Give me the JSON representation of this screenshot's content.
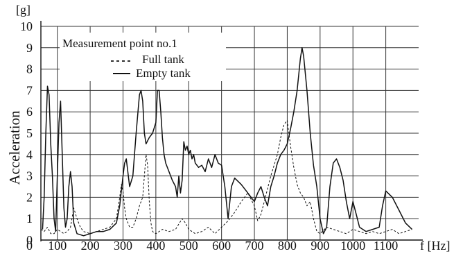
{
  "chart_data": {
    "type": "line",
    "ylabel": "Acceleration",
    "y_unit": "[g]",
    "x_unit": "f [Hz]",
    "xlim": [
      50,
      1200
    ],
    "ylim": [
      0,
      10
    ],
    "grid": true,
    "legend_placement": "top-left",
    "x_ticks": [
      100,
      200,
      300,
      400,
      500,
      600,
      700,
      800,
      900,
      1000,
      1100
    ],
    "y_ticks": [
      0,
      1,
      2,
      3,
      4,
      5,
      6,
      7,
      8,
      9,
      10
    ],
    "legend": {
      "title": "Measurement point no.1",
      "items": [
        "Full tank",
        "Empty tank"
      ]
    },
    "series": [
      {
        "name": "Full tank",
        "style": "dashed",
        "x": [
          50,
          60,
          70,
          80,
          90,
          100,
          110,
          120,
          130,
          140,
          150,
          160,
          170,
          180,
          200,
          220,
          240,
          260,
          280,
          290,
          295,
          300,
          305,
          310,
          320,
          330,
          340,
          350,
          360,
          365,
          370,
          375,
          380,
          385,
          390,
          400,
          420,
          440,
          460,
          480,
          490,
          500,
          520,
          540,
          560,
          580,
          600,
          620,
          640,
          660,
          680,
          700,
          710,
          720,
          730,
          740,
          750,
          760,
          770,
          780,
          790,
          800,
          810,
          820,
          830,
          840,
          850,
          860,
          870,
          880,
          890,
          900,
          920,
          940,
          960,
          980,
          1000,
          1020,
          1040,
          1060,
          1080,
          1100,
          1120,
          1140,
          1160,
          1180
        ],
        "y": [
          0.5,
          0.4,
          0.6,
          0.3,
          0.3,
          0.5,
          0.4,
          0.3,
          0.4,
          0.6,
          1.5,
          1.0,
          0.6,
          0.4,
          0.3,
          0.4,
          0.5,
          0.6,
          1.0,
          2.0,
          2.6,
          2.3,
          1.5,
          1.0,
          0.6,
          0.6,
          1.0,
          1.6,
          2.0,
          3.0,
          4.0,
          3.5,
          1.8,
          0.8,
          0.4,
          0.3,
          0.5,
          0.4,
          0.5,
          1.0,
          0.8,
          0.5,
          0.3,
          0.4,
          0.6,
          0.3,
          0.6,
          0.9,
          1.3,
          1.8,
          2.2,
          1.6,
          0.9,
          1.2,
          1.8,
          2.4,
          3.0,
          3.5,
          4.0,
          4.8,
          5.4,
          5.6,
          4.4,
          3.4,
          2.6,
          2.2,
          2.0,
          1.6,
          1.8,
          1.0,
          0.4,
          0.3,
          0.6,
          0.5,
          0.4,
          0.3,
          0.5,
          0.4,
          0.3,
          0.4,
          0.3,
          0.4,
          0.5,
          0.3,
          0.4,
          0.5
        ]
      },
      {
        "name": "Empty tank",
        "style": "solid",
        "x": [
          55,
          60,
          65,
          70,
          75,
          80,
          85,
          90,
          95,
          100,
          105,
          110,
          115,
          120,
          125,
          130,
          135,
          140,
          145,
          150,
          160,
          180,
          200,
          220,
          240,
          260,
          280,
          290,
          300,
          305,
          310,
          320,
          330,
          340,
          350,
          355,
          360,
          365,
          370,
          380,
          390,
          400,
          405,
          410,
          415,
          420,
          425,
          430,
          440,
          450,
          460,
          465,
          470,
          475,
          480,
          485,
          490,
          495,
          500,
          505,
          510,
          515,
          520,
          530,
          540,
          550,
          560,
          570,
          580,
          590,
          600,
          610,
          620,
          630,
          640,
          660,
          680,
          700,
          710,
          720,
          730,
          740,
          750,
          760,
          770,
          780,
          790,
          800,
          810,
          820,
          830,
          840,
          845,
          850,
          860,
          870,
          880,
          890,
          900,
          910,
          920,
          930,
          940,
          950,
          960,
          970,
          980,
          990,
          1000,
          1010,
          1020,
          1040,
          1060,
          1080,
          1090,
          1100,
          1120,
          1140,
          1160,
          1180
        ],
        "y": [
          0.5,
          2.0,
          5.0,
          7.2,
          6.8,
          4.5,
          3.0,
          1.0,
          0.4,
          3.0,
          5.5,
          6.5,
          4.0,
          1.5,
          0.6,
          1.0,
          2.5,
          3.2,
          2.5,
          0.8,
          0.3,
          0.2,
          0.3,
          0.4,
          0.4,
          0.5,
          0.8,
          1.6,
          3.0,
          3.6,
          3.8,
          2.5,
          3.0,
          5.0,
          6.8,
          7.0,
          6.5,
          5.0,
          4.5,
          4.8,
          5.0,
          5.5,
          7.0,
          7.0,
          6.0,
          4.8,
          4.0,
          3.6,
          3.2,
          2.8,
          2.5,
          2.0,
          3.0,
          2.2,
          2.8,
          4.6,
          4.2,
          4.4,
          4.0,
          4.2,
          3.8,
          4.0,
          3.6,
          3.4,
          3.5,
          3.2,
          3.8,
          3.4,
          4.0,
          3.6,
          3.5,
          2.5,
          1.0,
          2.5,
          2.9,
          2.6,
          2.2,
          1.8,
          2.2,
          2.5,
          2.0,
          1.6,
          2.5,
          3.0,
          3.6,
          4.0,
          4.2,
          4.5,
          5.2,
          6.0,
          7.0,
          8.5,
          9.0,
          8.6,
          7.0,
          5.0,
          3.5,
          2.5,
          1.0,
          0.3,
          0.6,
          2.5,
          3.6,
          3.8,
          3.4,
          2.8,
          1.8,
          1.0,
          1.8,
          1.2,
          0.6,
          0.4,
          0.5,
          0.6,
          1.6,
          2.3,
          2.0,
          1.4,
          0.8,
          0.5
        ]
      }
    ]
  }
}
